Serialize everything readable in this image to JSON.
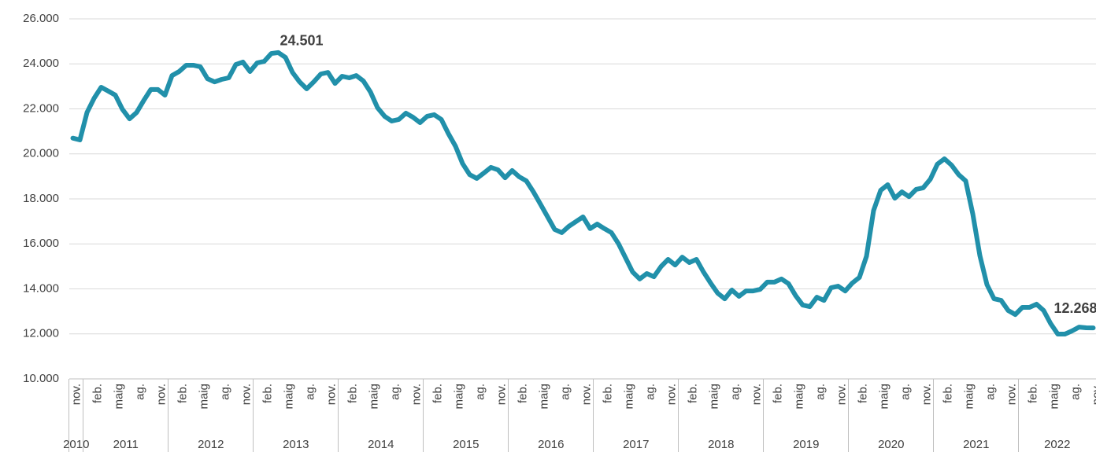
{
  "chart_data": {
    "type": "line",
    "categories": [
      "nov.",
      null,
      null,
      "feb.",
      null,
      null,
      "maig",
      null,
      null,
      "ag.",
      null,
      null,
      "nov.",
      null,
      null,
      "feb.",
      null,
      null,
      "maig",
      null,
      null,
      "ag.",
      null,
      null,
      "nov.",
      null,
      null,
      "feb.",
      null,
      null,
      "maig",
      null,
      null,
      "ag.",
      null,
      null,
      "nov.",
      null,
      null,
      "feb.",
      null,
      null,
      "maig",
      null,
      null,
      "ag.",
      null,
      null,
      "nov.",
      null,
      null,
      "feb.",
      null,
      null,
      "maig",
      null,
      null,
      "ag.",
      null,
      null,
      "nov.",
      null,
      null,
      "feb.",
      null,
      null,
      "maig",
      null,
      null,
      "ag.",
      null,
      null,
      "nov.",
      null,
      null,
      "feb.",
      null,
      null,
      "maig",
      null,
      null,
      "ag.",
      null,
      null,
      "nov.",
      null,
      null,
      "feb.",
      null,
      null,
      "maig",
      null,
      null,
      "ag.",
      null,
      null,
      "nov.",
      null,
      null,
      "feb.",
      null,
      null,
      "maig",
      null,
      null,
      "ag.",
      null,
      null,
      "nov.",
      null,
      null,
      "feb.",
      null,
      null,
      "maig",
      null,
      null,
      "ag.",
      null,
      null,
      "nov.",
      null,
      null,
      "feb.",
      null,
      null,
      "maig",
      null,
      null,
      "ag.",
      null,
      null,
      "nov.",
      null,
      null,
      "feb.",
      null,
      null,
      "maig",
      null,
      null,
      "ag.",
      null,
      null,
      "nov."
    ],
    "year_groups": [
      "2010",
      "2011",
      "2012",
      "2013",
      "2014",
      "2015",
      "2016",
      "2017",
      "2018",
      "2019",
      "2020",
      "2021",
      "2022"
    ],
    "values": [
      20700,
      20620,
      21840,
      22470,
      22960,
      22790,
      22610,
      21980,
      21560,
      21840,
      22370,
      22860,
      22860,
      22610,
      23480,
      23660,
      23940,
      23940,
      23870,
      23340,
      23200,
      23310,
      23380,
      23970,
      24080,
      23660,
      24040,
      24110,
      24460,
      24501,
      24290,
      23620,
      23200,
      22890,
      23200,
      23550,
      23620,
      23130,
      23450,
      23380,
      23480,
      23240,
      22750,
      22050,
      21670,
      21460,
      21530,
      21810,
      21630,
      21390,
      21670,
      21740,
      21530,
      20900,
      20340,
      19570,
      19080,
      18910,
      19150,
      19400,
      19290,
      18940,
      19260,
      18980,
      18800,
      18310,
      17760,
      17200,
      16640,
      16500,
      16780,
      16990,
      17200,
      16680,
      16880,
      16680,
      16500,
      16010,
      15380,
      14750,
      14440,
      14680,
      14540,
      14990,
      15310,
      15060,
      15410,
      15170,
      15310,
      14750,
      14260,
      13810,
      13560,
      13950,
      13670,
      13910,
      13910,
      13980,
      14300,
      14300,
      14440,
      14230,
      13700,
      13280,
      13210,
      13630,
      13490,
      14050,
      14120,
      13910,
      14260,
      14510,
      15450,
      17480,
      18380,
      18630,
      18030,
      18310,
      18100,
      18420,
      18490,
      18870,
      19540,
      19780,
      19500,
      19080,
      18800,
      17330,
      15480,
      14190,
      13560,
      13490,
      13040,
      12860,
      13180,
      13180,
      13320,
      13040,
      12450,
      11990,
      11990,
      12130,
      12300,
      12270,
      12268
    ],
    "value_labels": [
      null,
      null,
      null,
      null,
      null,
      null,
      null,
      null,
      null,
      null,
      null,
      null,
      null,
      null,
      null,
      null,
      null,
      null,
      null,
      null,
      null,
      null,
      null,
      null,
      null,
      null,
      null,
      null,
      null,
      "24.501",
      null,
      null,
      null,
      null,
      null,
      null,
      null,
      null,
      null,
      null,
      null,
      null,
      null,
      null,
      null,
      null,
      null,
      null,
      null,
      null,
      null,
      null,
      null,
      null,
      null,
      null,
      null,
      null,
      null,
      null,
      null,
      null,
      null,
      null,
      null,
      null,
      null,
      null,
      null,
      null,
      null,
      null,
      null,
      null,
      null,
      null,
      null,
      null,
      null,
      null,
      null,
      null,
      null,
      null,
      null,
      null,
      null,
      null,
      null,
      null,
      null,
      null,
      null,
      null,
      null,
      null,
      null,
      null,
      null,
      null,
      null,
      null,
      null,
      null,
      null,
      null,
      null,
      null,
      null,
      null,
      null,
      null,
      null,
      null,
      null,
      null,
      null,
      null,
      null,
      null,
      null,
      null,
      null,
      null,
      null,
      null,
      null,
      null,
      null,
      null,
      null,
      null,
      null,
      null,
      null,
      null,
      null,
      null,
      null,
      null,
      null,
      null,
      null,
      null,
      "12.268"
    ],
    "color": "#2190aa",
    "ylim": [
      10000,
      26000
    ],
    "yticks": [
      {
        "value": 10000,
        "label": "10.000"
      },
      {
        "value": 12000,
        "label": "12.000"
      },
      {
        "value": 14000,
        "label": "14.000"
      },
      {
        "value": 16000,
        "label": "16.000"
      },
      {
        "value": 18000,
        "label": "18.000"
      },
      {
        "value": 20000,
        "label": "20.000"
      },
      {
        "value": 22000,
        "label": "22.000"
      },
      {
        "value": 24000,
        "label": "24.000"
      },
      {
        "value": 26000,
        "label": "26.000"
      }
    ],
    "grid": true
  }
}
